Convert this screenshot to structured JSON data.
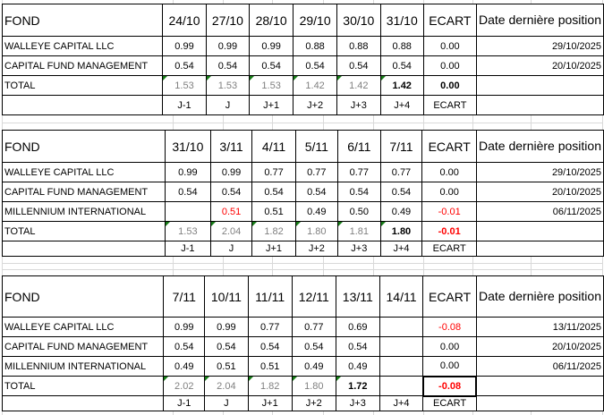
{
  "colors": {
    "negative_red": "#ff0000",
    "total_gray": "#808080",
    "error_indicator_green": "#177c17",
    "faint_gridline": "#d9d9d9",
    "cell_border": "#000000"
  },
  "tables": [
    {
      "header": {
        "fond": "FOND",
        "dates": [
          "24/10",
          "27/10",
          "28/10",
          "29/10",
          "30/10",
          "31/10"
        ],
        "ecart": "ECART",
        "last_position": "Date dernière position"
      },
      "funds": [
        {
          "name": "WALLEYE CAPITAL LLC",
          "values": [
            "0.99",
            "0.99",
            "0.99",
            "0.88",
            "0.88",
            "0.88"
          ],
          "red_indices": [],
          "ecart": "0.00",
          "ecart_red": false,
          "last_position": "29/10/2025"
        },
        {
          "name": "CAPITAL FUND MANAGEMENT",
          "values": [
            "0.54",
            "0.54",
            "0.54",
            "0.54",
            "0.54",
            "0.54"
          ],
          "red_indices": [],
          "ecart": "0.00",
          "ecart_red": false,
          "last_position": "20/10/2025"
        }
      ],
      "total": {
        "label": "TOTAL",
        "values": [
          "1.53",
          "1.53",
          "1.53",
          "1.42",
          "1.42",
          "1.42"
        ],
        "bold_index": 5,
        "ecart": "0.00",
        "ecart_red": false,
        "selected": false
      },
      "footer": [
        "J-1",
        "J",
        "J+1",
        "J+2",
        "J+3",
        "J+4",
        "ECART"
      ]
    },
    {
      "header": {
        "fond": "FOND",
        "dates": [
          "31/10",
          "3/11",
          "4/11",
          "5/11",
          "6/11",
          "7/11"
        ],
        "ecart": "ECART",
        "last_position": "Date dernière position"
      },
      "funds": [
        {
          "name": "WALLEYE CAPITAL LLC",
          "values": [
            "0.99",
            "0.99",
            "0.77",
            "0.77",
            "0.77",
            "0.77"
          ],
          "red_indices": [],
          "ecart": "0.00",
          "ecart_red": false,
          "last_position": "29/10/2025"
        },
        {
          "name": "CAPITAL FUND MANAGEMENT",
          "values": [
            "0.54",
            "0.54",
            "0.54",
            "0.54",
            "0.54",
            "0.54"
          ],
          "red_indices": [],
          "ecart": "0.00",
          "ecart_red": false,
          "last_position": "20/10/2025"
        },
        {
          "name": "MILLENNIUM INTERNATIONAL",
          "values": [
            "",
            "0.51",
            "0.51",
            "0.49",
            "0.50",
            "0.49"
          ],
          "red_indices": [
            1
          ],
          "ecart": "-0.01",
          "ecart_red": true,
          "last_position": "06/11/2025"
        }
      ],
      "total": {
        "label": "TOTAL",
        "values": [
          "1.53",
          "2.04",
          "1.82",
          "1.80",
          "1.81",
          "1.80"
        ],
        "bold_index": 5,
        "ecart": "-0.01",
        "ecart_red": true,
        "selected": false
      },
      "footer": [
        "J-1",
        "J",
        "J+1",
        "J+2",
        "J+3",
        "J+4",
        "ECART"
      ]
    },
    {
      "header": {
        "fond": "FOND",
        "dates": [
          "7/11",
          "10/11",
          "11/11",
          "12/11",
          "13/11",
          "14/11"
        ],
        "ecart": "ECART",
        "last_position": "Date dernière position"
      },
      "funds": [
        {
          "name": "WALLEYE CAPITAL LLC",
          "values": [
            "0.99",
            "0.99",
            "0.77",
            "0.77",
            "0.69",
            ""
          ],
          "red_indices": [],
          "ecart": "-0.08",
          "ecart_red": true,
          "last_position": "13/11/2025"
        },
        {
          "name": "CAPITAL FUND MANAGEMENT",
          "values": [
            "0.54",
            "0.54",
            "0.54",
            "0.54",
            "0.54",
            ""
          ],
          "red_indices": [],
          "ecart": "0.00",
          "ecart_red": false,
          "last_position": "20/10/2025"
        },
        {
          "name": "MILLENNIUM INTERNATIONAL",
          "values": [
            "0.49",
            "0.51",
            "0.51",
            "0.49",
            "0.49",
            ""
          ],
          "red_indices": [],
          "ecart": "0.00",
          "ecart_red": false,
          "last_position": "06/11/2025"
        }
      ],
      "total": {
        "label": "TOTAL",
        "values": [
          "2.02",
          "2.04",
          "1.82",
          "1.80",
          "1.72",
          ""
        ],
        "bold_index": 4,
        "ecart": "-0.08",
        "ecart_red": true,
        "selected": true
      },
      "footer": [
        "J-1",
        "J",
        "J+1",
        "J+2",
        "J+3",
        "J+4",
        "ECART"
      ]
    }
  ]
}
